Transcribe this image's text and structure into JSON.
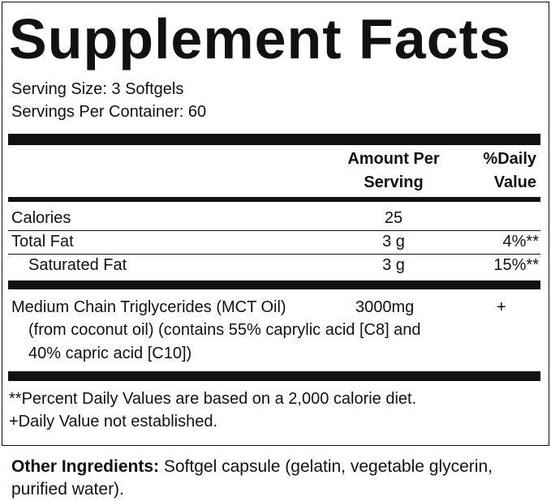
{
  "header": {
    "title": "Supplement Facts",
    "serving_size": "Serving Size: 3 Softgels",
    "servings_per_container": "Servings Per Container: 60"
  },
  "table": {
    "columns": {
      "amount": [
        "Amount Per",
        "Serving"
      ],
      "daily_value": [
        "%Daily",
        "Value"
      ]
    },
    "rows": [
      {
        "name": "Calories",
        "amount": "25"
      },
      {
        "name": "Total Fat",
        "amount": "3 g",
        "daily_value": "4%**"
      },
      {
        "name": "Saturated Fat",
        "amount": "3 g",
        "daily_value": "15%**"
      }
    ],
    "ingredient": {
      "name": "Medium Chain Triglycerides (MCT Oil)",
      "amount": "3000mg",
      "daily_value": "+",
      "detail": [
        "(from coconut oil) (contains 55% caprylic acid [C8] and",
        "40% capric acid [C10])"
      ]
    }
  },
  "footnotes": [
    "**Percent Daily Values are based on a 2,000 calorie diet.",
    "+Daily Value not established."
  ],
  "other_ingredients": {
    "label": "Other Ingredients:",
    "text": "Softgel capsule (gelatin, vegetable glycerin, purified water)."
  }
}
